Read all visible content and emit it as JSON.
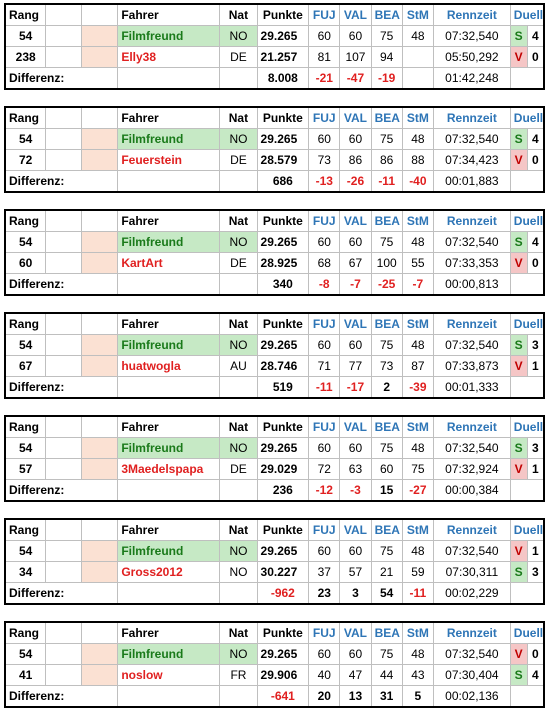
{
  "headers": {
    "rang": "Rang",
    "fahrer": "Fahrer",
    "nat": "Nat",
    "punkte": "Punkte",
    "fuj": "FUJ",
    "val": "VAL",
    "bea": "BEA",
    "stm": "StM",
    "rennzeit": "Rennzeit",
    "duelle": "Duelle",
    "differenz": "Differenz:"
  },
  "blocks": [
    {
      "r1": {
        "rang": "54",
        "name": "Filmfreund",
        "nat": "NO",
        "punkte": "29.265",
        "fuj": "60",
        "val": "60",
        "bea": "75",
        "stm": "48",
        "rz": "07:32,540",
        "dl": "S",
        "dn": "4"
      },
      "r2": {
        "rang": "238",
        "name": "Elly38",
        "nat": "DE",
        "punkte": "21.257",
        "fuj": "81",
        "val": "107",
        "bea": "94",
        "stm": "",
        "rz": "05:50,292",
        "dl": "V",
        "dn": "0"
      },
      "diff": {
        "punkte": "8.008",
        "fuj": "-21",
        "val": "-47",
        "bea": "-19",
        "stm": "",
        "rz": "01:42,248"
      }
    },
    {
      "r1": {
        "rang": "54",
        "name": "Filmfreund",
        "nat": "NO",
        "punkte": "29.265",
        "fuj": "60",
        "val": "60",
        "bea": "75",
        "stm": "48",
        "rz": "07:32,540",
        "dl": "S",
        "dn": "4"
      },
      "r2": {
        "rang": "72",
        "name": "Feuerstein",
        "nat": "DE",
        "punkte": "28.579",
        "fuj": "73",
        "val": "86",
        "bea": "86",
        "stm": "88",
        "rz": "07:34,423",
        "dl": "V",
        "dn": "0"
      },
      "diff": {
        "punkte": "686",
        "fuj": "-13",
        "val": "-26",
        "bea": "-11",
        "stm": "-40",
        "rz": "00:01,883"
      }
    },
    {
      "r1": {
        "rang": "54",
        "name": "Filmfreund",
        "nat": "NO",
        "punkte": "29.265",
        "fuj": "60",
        "val": "60",
        "bea": "75",
        "stm": "48",
        "rz": "07:32,540",
        "dl": "S",
        "dn": "4"
      },
      "r2": {
        "rang": "60",
        "name": "KartArt",
        "nat": "DE",
        "punkte": "28.925",
        "fuj": "68",
        "val": "67",
        "bea": "100",
        "stm": "55",
        "rz": "07:33,353",
        "dl": "V",
        "dn": "0"
      },
      "diff": {
        "punkte": "340",
        "fuj": "-8",
        "val": "-7",
        "bea": "-25",
        "stm": "-7",
        "rz": "00:00,813"
      }
    },
    {
      "r1": {
        "rang": "54",
        "name": "Filmfreund",
        "nat": "NO",
        "punkte": "29.265",
        "fuj": "60",
        "val": "60",
        "bea": "75",
        "stm": "48",
        "rz": "07:32,540",
        "dl": "S",
        "dn": "3"
      },
      "r2": {
        "rang": "67",
        "name": "huatwogla",
        "nat": "AU",
        "punkte": "28.746",
        "fuj": "71",
        "val": "77",
        "bea": "73",
        "stm": "87",
        "rz": "07:33,873",
        "dl": "V",
        "dn": "1"
      },
      "diff": {
        "punkte": "519",
        "fuj": "-11",
        "val": "-17",
        "bea": "2",
        "stm": "-39",
        "rz": "00:01,333"
      }
    },
    {
      "r1": {
        "rang": "54",
        "name": "Filmfreund",
        "nat": "NO",
        "punkte": "29.265",
        "fuj": "60",
        "val": "60",
        "bea": "75",
        "stm": "48",
        "rz": "07:32,540",
        "dl": "S",
        "dn": "3"
      },
      "r2": {
        "rang": "57",
        "name": "3Maedelspapa",
        "nat": "DE",
        "punkte": "29.029",
        "fuj": "72",
        "val": "63",
        "bea": "60",
        "stm": "75",
        "rz": "07:32,924",
        "dl": "V",
        "dn": "1"
      },
      "diff": {
        "punkte": "236",
        "fuj": "-12",
        "val": "-3",
        "bea": "15",
        "stm": "-27",
        "rz": "00:00,384"
      }
    },
    {
      "r1": {
        "rang": "54",
        "name": "Filmfreund",
        "nat": "NO",
        "punkte": "29.265",
        "fuj": "60",
        "val": "60",
        "bea": "75",
        "stm": "48",
        "rz": "07:32,540",
        "dl": "V",
        "dn": "1"
      },
      "r2": {
        "rang": "34",
        "name": "Gross2012",
        "nat": "NO",
        "punkte": "30.227",
        "fuj": "37",
        "val": "57",
        "bea": "21",
        "stm": "59",
        "rz": "07:30,311",
        "dl": "S",
        "dn": "3"
      },
      "diff": {
        "punkte": "-962",
        "fuj": "23",
        "val": "3",
        "bea": "54",
        "stm": "-11",
        "rz": "00:02,229"
      }
    },
    {
      "r1": {
        "rang": "54",
        "name": "Filmfreund",
        "nat": "NO",
        "punkte": "29.265",
        "fuj": "60",
        "val": "60",
        "bea": "75",
        "stm": "48",
        "rz": "07:32,540",
        "dl": "V",
        "dn": "0"
      },
      "r2": {
        "rang": "41",
        "name": "noslow",
        "nat": "FR",
        "punkte": "29.906",
        "fuj": "40",
        "val": "47",
        "bea": "44",
        "stm": "43",
        "rz": "07:30,404",
        "dl": "S",
        "dn": "4"
      },
      "diff": {
        "punkte": "-641",
        "fuj": "20",
        "val": "13",
        "bea": "31",
        "stm": "5",
        "rz": "00:02,136"
      }
    }
  ],
  "colors": {
    "header_blue": "#2e75b6",
    "name_green_bg": "#c6e9c5",
    "name_green_text": "#1a7a1a",
    "pink_bg": "#fbe1d3",
    "red_text": "#e02020",
    "duel_win_bg": "#c6e9c5",
    "duel_loss_bg": "#f5c6c6"
  }
}
